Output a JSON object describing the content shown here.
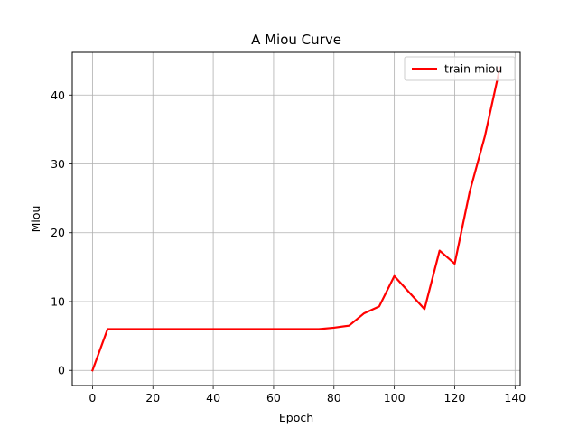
{
  "chart_data": {
    "type": "line",
    "title": "A Miou Curve",
    "xlabel": "Epoch",
    "ylabel": "Miou",
    "xlim": [
      -6.7,
      141.7
    ],
    "ylim": [
      -2.2,
      46.2
    ],
    "xticks": [
      0,
      20,
      40,
      60,
      80,
      100,
      120,
      140
    ],
    "yticks": [
      0,
      10,
      20,
      30,
      40
    ],
    "grid": true,
    "legend": {
      "position": "top-right"
    },
    "series": [
      {
        "name": "train miou",
        "color": "#ff0000",
        "x": [
          0,
          5,
          10,
          15,
          20,
          25,
          30,
          35,
          40,
          45,
          50,
          55,
          60,
          65,
          70,
          75,
          80,
          85,
          90,
          95,
          100,
          105,
          110,
          115,
          120,
          125,
          130,
          135
        ],
        "y": [
          0.0,
          6.0,
          6.0,
          6.0,
          6.0,
          6.0,
          6.0,
          6.0,
          6.0,
          6.0,
          6.0,
          6.0,
          6.0,
          6.0,
          6.0,
          6.0,
          6.2,
          6.5,
          8.3,
          9.3,
          13.7,
          11.3,
          8.9,
          17.4,
          15.5,
          26.0,
          34.0,
          44.0
        ]
      }
    ]
  }
}
